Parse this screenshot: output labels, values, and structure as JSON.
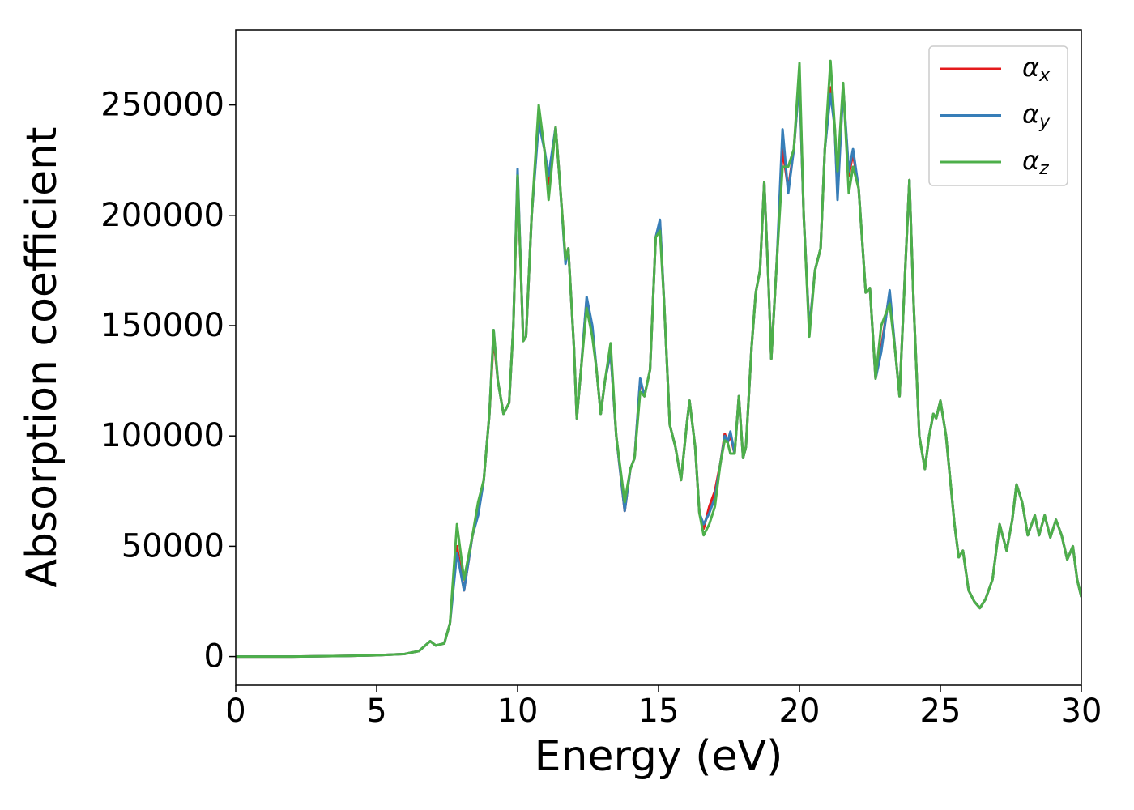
{
  "chart_data": {
    "type": "line",
    "xlabel": "Energy (eV)",
    "ylabel": "Absorption coefficient",
    "xlim": [
      0,
      30
    ],
    "ylim": [
      -13000,
      284000
    ],
    "xticks": [
      0,
      5,
      10,
      15,
      20,
      25,
      30
    ],
    "yticks": [
      0,
      50000,
      100000,
      150000,
      200000,
      250000
    ],
    "legend": "upper right",
    "x": [
      0,
      2,
      4,
      5,
      6,
      6.5,
      6.9,
      7.1,
      7.4,
      7.6,
      7.85,
      8.1,
      8.4,
      8.6,
      8.8,
      9.0,
      9.15,
      9.3,
      9.5,
      9.7,
      9.85,
      10.0,
      10.2,
      10.3,
      10.5,
      10.75,
      10.95,
      11.1,
      11.35,
      11.5,
      11.7,
      11.8,
      12.0,
      12.1,
      12.25,
      12.45,
      12.65,
      12.8,
      12.95,
      13.1,
      13.3,
      13.5,
      13.8,
      14.0,
      14.15,
      14.35,
      14.5,
      14.7,
      14.9,
      15.05,
      15.2,
      15.4,
      15.6,
      15.8,
      16.0,
      16.1,
      16.3,
      16.45,
      16.6,
      16.8,
      17.0,
      17.2,
      17.35,
      17.45,
      17.55,
      17.7,
      17.85,
      18.0,
      18.1,
      18.3,
      18.45,
      18.6,
      18.75,
      18.9,
      19.0,
      19.2,
      19.4,
      19.6,
      19.8,
      20.0,
      20.15,
      20.35,
      20.55,
      20.75,
      20.9,
      21.1,
      21.25,
      21.35,
      21.55,
      21.75,
      21.9,
      22.1,
      22.35,
      22.5,
      22.7,
      22.9,
      23.2,
      23.4,
      23.55,
      23.75,
      23.9,
      24.05,
      24.25,
      24.45,
      24.6,
      24.75,
      24.85,
      25.0,
      25.2,
      25.5,
      25.65,
      25.8,
      26.0,
      26.2,
      26.4,
      26.6,
      26.85,
      27.1,
      27.35,
      27.55,
      27.7,
      27.9,
      28.1,
      28.35,
      28.5,
      28.7,
      28.9,
      29.1,
      29.3,
      29.5,
      29.7,
      29.85,
      30.0
    ],
    "series": [
      {
        "name": "αx",
        "color": "#e41a1c",
        "values": [
          0,
          0,
          300,
          600,
          1200,
          2500,
          7000,
          5000,
          6000,
          15000,
          50000,
          30000,
          55000,
          65000,
          80000,
          110000,
          145000,
          125000,
          110000,
          115000,
          150000,
          218000,
          143000,
          145000,
          200000,
          244000,
          230000,
          214000,
          240000,
          215000,
          180000,
          185000,
          140000,
          108000,
          130000,
          162000,
          148000,
          130000,
          110000,
          125000,
          138000,
          100000,
          66000,
          85000,
          90000,
          125000,
          118000,
          130000,
          190000,
          197000,
          160000,
          105000,
          95000,
          80000,
          105000,
          116000,
          95000,
          65000,
          58000,
          68000,
          75000,
          88000,
          101000,
          97000,
          100000,
          92000,
          118000,
          90000,
          95000,
          140000,
          165000,
          175000,
          215000,
          170000,
          135000,
          180000,
          230000,
          212000,
          230000,
          263000,
          200000,
          148000,
          175000,
          185000,
          230000,
          258000,
          240000,
          210000,
          258000,
          218000,
          228000,
          212000,
          165000,
          167000,
          126000,
          140000,
          165000,
          138000,
          118000,
          175000,
          216000,
          160000,
          100000,
          85000,
          100000,
          110000,
          108000,
          116000,
          100000,
          60000,
          45000,
          48000,
          30000,
          25000,
          22000,
          26000,
          35000,
          60000,
          48000,
          62000,
          78000,
          70000,
          55000,
          64000,
          55000,
          64000,
          54000,
          62000,
          55000,
          44000,
          50000,
          35000,
          27000
        ]
      },
      {
        "name": "αy",
        "color": "#377eb8",
        "values": [
          0,
          0,
          300,
          600,
          1200,
          2500,
          7000,
          5000,
          6000,
          15000,
          47000,
          30000,
          55000,
          64000,
          80000,
          110000,
          148000,
          125000,
          110000,
          115000,
          150000,
          221000,
          143000,
          145000,
          200000,
          242000,
          230000,
          218000,
          240000,
          215000,
          178000,
          185000,
          140000,
          108000,
          130000,
          163000,
          150000,
          130000,
          110000,
          125000,
          138000,
          100000,
          66000,
          85000,
          90000,
          126000,
          118000,
          130000,
          190000,
          198000,
          160000,
          105000,
          95000,
          80000,
          105000,
          116000,
          95000,
          65000,
          60000,
          65000,
          72000,
          88000,
          100000,
          97000,
          102000,
          92000,
          118000,
          90000,
          95000,
          140000,
          165000,
          175000,
          215000,
          170000,
          135000,
          180000,
          239000,
          210000,
          230000,
          262000,
          200000,
          148000,
          175000,
          185000,
          230000,
          255000,
          240000,
          207000,
          258000,
          220000,
          230000,
          212000,
          165000,
          167000,
          126000,
          138000,
          166000,
          138000,
          118000,
          175000,
          216000,
          160000,
          100000,
          85000,
          100000,
          110000,
          108000,
          116000,
          100000,
          60000,
          45000,
          48000,
          30000,
          25000,
          22000,
          26000,
          35000,
          60000,
          48000,
          62000,
          78000,
          70000,
          55000,
          64000,
          55000,
          64000,
          54000,
          62000,
          55000,
          44000,
          50000,
          35000,
          27000
        ]
      },
      {
        "name": "αz",
        "color": "#4daf4a",
        "values": [
          0,
          0,
          300,
          600,
          1200,
          2500,
          7000,
          5000,
          6000,
          15000,
          60000,
          35000,
          55000,
          70000,
          80000,
          110000,
          148000,
          125000,
          110000,
          115000,
          150000,
          218000,
          143000,
          145000,
          200000,
          250000,
          230000,
          207000,
          240000,
          215000,
          180000,
          185000,
          140000,
          108000,
          130000,
          158000,
          145000,
          130000,
          110000,
          125000,
          142000,
          100000,
          70000,
          85000,
          90000,
          120000,
          118000,
          130000,
          190000,
          193000,
          160000,
          105000,
          95000,
          80000,
          105000,
          116000,
          95000,
          65000,
          55000,
          60000,
          68000,
          88000,
          98000,
          97000,
          92000,
          92000,
          118000,
          90000,
          95000,
          140000,
          165000,
          175000,
          215000,
          170000,
          135000,
          180000,
          222000,
          222000,
          230000,
          269000,
          200000,
          145000,
          175000,
          185000,
          230000,
          270000,
          240000,
          220000,
          260000,
          210000,
          222000,
          212000,
          165000,
          167000,
          126000,
          150000,
          160000,
          138000,
          118000,
          175000,
          216000,
          160000,
          100000,
          85000,
          100000,
          110000,
          108000,
          116000,
          100000,
          60000,
          45000,
          48000,
          30000,
          25000,
          22000,
          26000,
          35000,
          60000,
          48000,
          62000,
          78000,
          70000,
          55000,
          64000,
          55000,
          64000,
          54000,
          62000,
          55000,
          44000,
          50000,
          35000,
          27000
        ]
      }
    ]
  }
}
